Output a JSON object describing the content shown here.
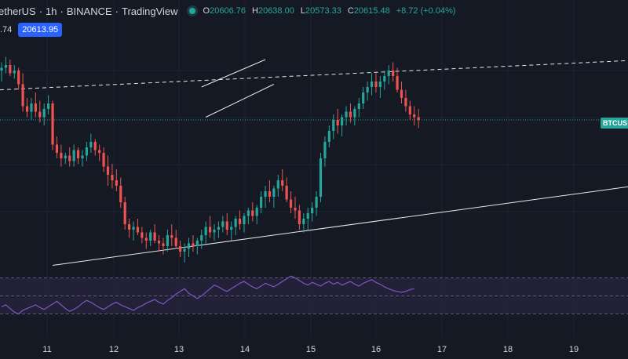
{
  "header": {
    "symbol": "etherUS",
    "interval": "1h",
    "exchange": "BINANCE",
    "platform": "TradingView",
    "open_label": "O",
    "open": "20606.76",
    "high_label": "H",
    "high": "20638.00",
    "low_label": "L",
    "low": "20573.33",
    "close_label": "C",
    "close": "20615.48",
    "change": "+8.72 (+0.04%)"
  },
  "price_row": {
    "partial_value": ".74",
    "last_price": "20613.95"
  },
  "ticker_tag": "BTCUS",
  "colors": {
    "background": "#151924",
    "up": "#26a69a",
    "down": "#ef5350",
    "rsi_line": "#7e57c2",
    "rsi_band": "#2a2540",
    "text": "#d1d4dc",
    "accent": "#2962ff"
  },
  "chart_data": [
    {
      "type": "candlestick",
      "x_axis_labels": [
        "11",
        "12",
        "13",
        "14",
        "15",
        "16",
        "17",
        "18",
        "19"
      ],
      "ylim": [
        20300,
        21100
      ],
      "candles": [
        [
          21000,
          21030,
          20960,
          21010
        ],
        [
          21010,
          21050,
          20990,
          21020
        ],
        [
          21020,
          21040,
          20980,
          20990
        ],
        [
          20990,
          21020,
          20970,
          21000
        ],
        [
          21000,
          21010,
          20930,
          20950
        ],
        [
          20950,
          20990,
          20850,
          20870
        ],
        [
          20870,
          20900,
          20830,
          20850
        ],
        [
          20850,
          20900,
          20820,
          20880
        ],
        [
          20880,
          20920,
          20830,
          20850
        ],
        [
          20850,
          20890,
          20810,
          20830
        ],
        [
          20830,
          20880,
          20800,
          20860
        ],
        [
          20860,
          20910,
          20840,
          20880
        ],
        [
          20880,
          20890,
          20710,
          20730
        ],
        [
          20730,
          20760,
          20680,
          20700
        ],
        [
          20700,
          20730,
          20650,
          20680
        ],
        [
          20680,
          20700,
          20660,
          20690
        ],
        [
          20690,
          20720,
          20650,
          20670
        ],
        [
          20670,
          20730,
          20650,
          20710
        ],
        [
          20710,
          20720,
          20660,
          20680
        ],
        [
          20680,
          20710,
          20650,
          20690
        ],
        [
          20690,
          20740,
          20670,
          20720
        ],
        [
          20720,
          20770,
          20700,
          20740
        ],
        [
          20740,
          20750,
          20690,
          20710
        ],
        [
          20710,
          20730,
          20670,
          20700
        ],
        [
          20700,
          20720,
          20630,
          20650
        ],
        [
          20650,
          20690,
          20580,
          20620
        ],
        [
          20620,
          20660,
          20570,
          20600
        ],
        [
          20600,
          20640,
          20560,
          20580
        ],
        [
          20580,
          20610,
          20500,
          20520
        ],
        [
          20520,
          20540,
          20420,
          20440
        ],
        [
          20440,
          20460,
          20390,
          20420
        ],
        [
          20420,
          20450,
          20380,
          20430
        ],
        [
          20430,
          20460,
          20400,
          20410
        ],
        [
          20410,
          20430,
          20370,
          20390
        ],
        [
          20390,
          20410,
          20350,
          20380
        ],
        [
          20380,
          20420,
          20360,
          20410
        ],
        [
          20410,
          20440,
          20370,
          20380
        ],
        [
          20380,
          20400,
          20340,
          20370
        ],
        [
          20370,
          20390,
          20330,
          20360
        ],
        [
          20360,
          20420,
          20340,
          20400
        ],
        [
          20400,
          20440,
          20360,
          20390
        ],
        [
          20390,
          20420,
          20350,
          20360
        ],
        [
          20360,
          20380,
          20320,
          20340
        ],
        [
          20340,
          20370,
          20300,
          20350
        ],
        [
          20350,
          20390,
          20320,
          20370
        ],
        [
          20370,
          20400,
          20340,
          20360
        ],
        [
          20360,
          20390,
          20330,
          20380
        ],
        [
          20380,
          20420,
          20350,
          20400
        ],
        [
          20400,
          20450,
          20370,
          20430
        ],
        [
          20430,
          20470,
          20390,
          20410
        ],
        [
          20410,
          20440,
          20380,
          20420
        ],
        [
          20420,
          20450,
          20390,
          20430
        ],
        [
          20430,
          20470,
          20410,
          20450
        ],
        [
          20450,
          20480,
          20400,
          20420
        ],
        [
          20420,
          20450,
          20380,
          20430
        ],
        [
          20430,
          20470,
          20400,
          20460
        ],
        [
          20460,
          20490,
          20420,
          20440
        ],
        [
          20440,
          20480,
          20410,
          20470
        ],
        [
          20470,
          20500,
          20440,
          20490
        ],
        [
          20490,
          20520,
          20450,
          20470
        ],
        [
          20470,
          20510,
          20440,
          20500
        ],
        [
          20500,
          20560,
          20480,
          20540
        ],
        [
          20540,
          20580,
          20500,
          20560
        ],
        [
          20560,
          20600,
          20520,
          20540
        ],
        [
          20540,
          20580,
          20500,
          20570
        ],
        [
          20570,
          20620,
          20540,
          20600
        ],
        [
          20600,
          20640,
          20560,
          20580
        ],
        [
          20580,
          20610,
          20520,
          20530
        ],
        [
          20530,
          20560,
          20480,
          20500
        ],
        [
          20500,
          20540,
          20460,
          20490
        ],
        [
          20490,
          20510,
          20420,
          20440
        ],
        [
          20440,
          20480,
          20410,
          20460
        ],
        [
          20460,
          20500,
          20420,
          20480
        ],
        [
          20480,
          20520,
          20450,
          20500
        ],
        [
          20500,
          20560,
          20470,
          20540
        ],
        [
          20540,
          20700,
          20520,
          20680
        ],
        [
          20680,
          20760,
          20650,
          20740
        ],
        [
          20740,
          20800,
          20720,
          20780
        ],
        [
          20780,
          20840,
          20750,
          20820
        ],
        [
          20820,
          20860,
          20770,
          20800
        ],
        [
          20800,
          20840,
          20760,
          20830
        ],
        [
          20830,
          20870,
          20800,
          20850
        ],
        [
          20850,
          20880,
          20810,
          20830
        ],
        [
          20830,
          20870,
          20800,
          20860
        ],
        [
          20860,
          20900,
          20830,
          20880
        ],
        [
          20880,
          20940,
          20860,
          20920
        ],
        [
          20920,
          20960,
          20890,
          20940
        ],
        [
          20940,
          20990,
          20910,
          20960
        ],
        [
          20960,
          20990,
          20920,
          20940
        ],
        [
          20940,
          20980,
          20900,
          20960
        ],
        [
          20960,
          21000,
          20930,
          20980
        ],
        [
          20980,
          21020,
          20950,
          21000
        ],
        [
          21000,
          21030,
          20960,
          20980
        ],
        [
          20980,
          21010,
          20920,
          20930
        ],
        [
          20930,
          20960,
          20880,
          20900
        ],
        [
          20900,
          20930,
          20850,
          20870
        ],
        [
          20870,
          20890,
          20820,
          20840
        ],
        [
          20840,
          20870,
          20800,
          20830
        ],
        [
          20830,
          20860,
          20790,
          20820
        ]
      ],
      "trendlines": [
        {
          "style": "dashed",
          "points": [
            [
              0,
              20930
            ],
            [
              97,
              21000
            ]
          ]
        },
        {
          "style": "solid",
          "points": [
            [
              12,
              20290
            ],
            [
              97,
              20470
            ]
          ]
        },
        {
          "style": "solid",
          "points": [
            [
              47,
              20940
            ],
            [
              62,
              21040
            ]
          ]
        },
        {
          "style": "solid",
          "points": [
            [
              48,
              20830
            ],
            [
              64,
              20950
            ]
          ]
        }
      ]
    },
    {
      "type": "line",
      "name": "",
      "ylim": [
        20,
        80
      ],
      "bands": [
        30,
        50,
        70
      ],
      "values": [
        38,
        40,
        36,
        32,
        30,
        34,
        36,
        38,
        40,
        37,
        35,
        38,
        41,
        44,
        40,
        36,
        33,
        35,
        38,
        42,
        45,
        43,
        40,
        37,
        35,
        38,
        41,
        43,
        40,
        38,
        36,
        34,
        37,
        39,
        42,
        44,
        46,
        43,
        41,
        45,
        48,
        52,
        55,
        58,
        53,
        50,
        47,
        50,
        54,
        58,
        62,
        60,
        57,
        55,
        58,
        61,
        64,
        66,
        63,
        60,
        58,
        61,
        64,
        62,
        60,
        63,
        66,
        69,
        72,
        70,
        67,
        64,
        62,
        65,
        63,
        61,
        64,
        66,
        63,
        65,
        62,
        64,
        66,
        63,
        61,
        64,
        66,
        68,
        65,
        63,
        60,
        58,
        56,
        55,
        54,
        55,
        57,
        58
      ]
    }
  ]
}
